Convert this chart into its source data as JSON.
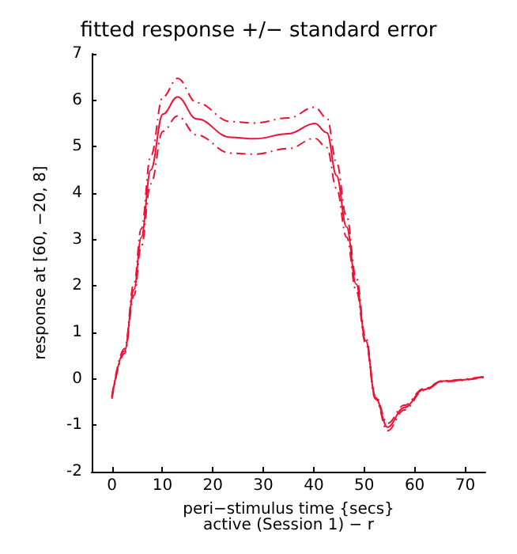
{
  "chart_data": {
    "type": "line",
    "title": "fitted response +/− standard error",
    "xlabel": "peri−stimulus time {secs}\nactive (Session 1) − r",
    "ylabel": "response at [60, −20, 8]",
    "x": [
      0,
      2.5,
      4.4,
      5.8,
      7.7,
      10.1,
      13,
      16.8,
      23.5,
      28.3,
      35,
      40.2,
      42.6,
      44.5,
      46.5,
      48.4,
      50.3,
      52.2,
      54.6,
      57.9,
      61.8,
      65.6,
      73.7
    ],
    "series": [
      {
        "color": "#ee1133",
        "values": [
          -0.4,
          0.6,
          1.93,
          3.04,
          4.5,
          5.7,
          6.07,
          5.6,
          5.2,
          5.17,
          5.28,
          5.5,
          5.3,
          4.38,
          3.27,
          2.04,
          0.82,
          -0.4,
          -1.04,
          -0.62,
          -0.23,
          -0.05,
          0.04
        ]
      },
      {
        "color": "#ee1133",
        "line_style": "dashed",
        "values": [
          -0.43,
          0.55,
          1.8,
          2.85,
          4.2,
          5.33,
          5.66,
          5.25,
          4.86,
          4.84,
          4.96,
          5.18,
          4.98,
          4.1,
          3.05,
          1.9,
          0.76,
          -0.43,
          -1.12,
          -0.67,
          -0.25,
          -0.06,
          0.03
        ]
      },
      {
        "color": "#ee1133",
        "line_style": "dashed",
        "values": [
          -0.37,
          0.65,
          2.06,
          3.23,
          4.8,
          6.07,
          6.47,
          5.95,
          5.54,
          5.51,
          5.62,
          5.85,
          5.62,
          4.66,
          3.49,
          2.18,
          0.88,
          -0.37,
          -0.96,
          -0.57,
          -0.21,
          -0.04,
          0.05
        ]
      }
    ],
    "xlim": [
      -4,
      74
    ],
    "xticks": [
      0,
      10,
      20,
      30,
      40,
      50,
      60,
      70
    ],
    "ylim": [
      -2,
      7
    ],
    "yticks": [
      -2,
      -1,
      0,
      1,
      2,
      3,
      4,
      5,
      6,
      7
    ],
    "grid": false,
    "marker": "none",
    "line_style": "solid"
  }
}
